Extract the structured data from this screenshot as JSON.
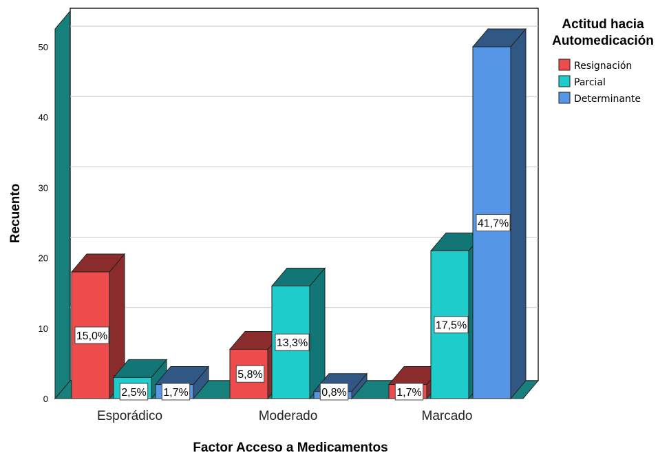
{
  "chart_data": {
    "type": "bar",
    "xlabel": "Factor Acceso a Medicamentos",
    "ylabel": "Recuento",
    "ylim": [
      0,
      53
    ],
    "yticks": [
      0,
      10,
      20,
      30,
      40,
      50
    ],
    "grid": true,
    "legend_placement": "top-right",
    "legend_title": [
      "Actitud hacia",
      "Automedicación"
    ],
    "categories": [
      "Esporádico",
      "Moderado",
      "Marcado"
    ],
    "series": [
      {
        "name": "Resignación",
        "color": "#ee4c4c",
        "values": [
          18,
          7,
          2
        ],
        "labels": [
          "15,0%",
          "5,8%",
          "1,7%"
        ]
      },
      {
        "name": "Parcial",
        "color": "#1fcccc",
        "values": [
          3,
          16,
          21
        ],
        "labels": [
          "2,5%",
          "13,3%",
          "17,5%"
        ]
      },
      {
        "name": "Determinante",
        "color": "#5596e6",
        "values": [
          2,
          1,
          50
        ],
        "labels": [
          "1,7%",
          "0,8%",
          "41,7%"
        ]
      }
    ]
  }
}
